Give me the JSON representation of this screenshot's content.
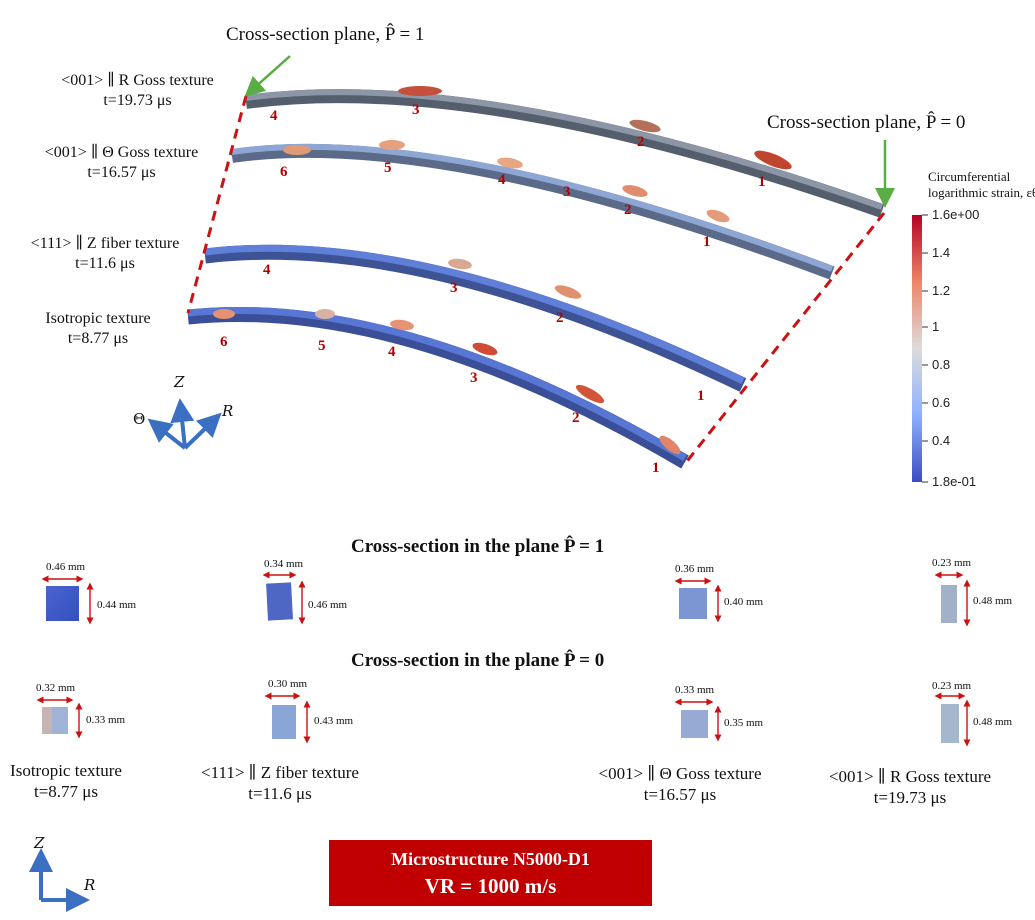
{
  "colors": {
    "strain_high": "#c8202a",
    "strain_low": "#3a54c4",
    "plane_marker": "#cc1111",
    "arrow_green": "#5aac44",
    "axis_blue": "#3a6fc2",
    "banner_red": "#c00000",
    "strip_gray": "#596270"
  },
  "top": {
    "plane1_label": "Cross-section plane, P̂ = 1",
    "plane0_label": "Cross-section plane, P̂ = 0",
    "strips": [
      {
        "name": "<001> ∥ R Goss texture",
        "time": "t=19.73 μs",
        "numbers": [
          "4",
          "3",
          "2",
          "1"
        ]
      },
      {
        "name": "<001> ∥ Θ Goss texture",
        "time": "t=16.57 μs",
        "numbers": [
          "6",
          "5",
          "4",
          "3",
          "2",
          "1"
        ]
      },
      {
        "name": "<111> ∥ Z fiber texture",
        "time": "t=11.6 μs",
        "numbers": [
          "4",
          "3",
          "2",
          "1"
        ]
      },
      {
        "name": "Isotropic texture",
        "time": "t=8.77 μs",
        "numbers": [
          "6",
          "5",
          "4",
          "3",
          "2",
          "1"
        ]
      }
    ],
    "axes": {
      "z": "Z",
      "theta": "Θ",
      "r": "R"
    }
  },
  "colorbar": {
    "title_line1": "Circumferential",
    "title_line2": "logarithmic strain, εθθ",
    "ticks": [
      "1.6e+00",
      "1.4",
      "1.2",
      "1",
      "0.8",
      "0.6",
      "0.4",
      "1.8e-01"
    ]
  },
  "sections": {
    "plane1_title": "Cross-section in the plane P̂ = 1",
    "plane0_title": "Cross-section in the plane P̂ = 0",
    "plane1": [
      {
        "width": "0.46 mm",
        "height": "0.44 mm"
      },
      {
        "width": "0.34 mm",
        "height": "0.46 mm"
      },
      {
        "width": "0.36 mm",
        "height": "0.40 mm"
      },
      {
        "width": "0.23 mm",
        "height": "0.48 mm"
      }
    ],
    "plane0": [
      {
        "width": "0.32 mm",
        "height": "0.33 mm"
      },
      {
        "width": "0.30 mm",
        "height": "0.43 mm"
      },
      {
        "width": "0.33 mm",
        "height": "0.35 mm"
      },
      {
        "width": "0.23 mm",
        "height": "0.48 mm"
      }
    ],
    "labels": [
      {
        "name": "Isotropic texture",
        "time": "t=8.77 μs"
      },
      {
        "name": "<111> ∥ Z fiber texture",
        "time": "t=11.6 μs"
      },
      {
        "name": "<001> ∥ Θ Goss texture",
        "time": "t=16.57 μs"
      },
      {
        "name": "<001> ∥ R Goss texture",
        "time": "t=19.73 μs"
      }
    ]
  },
  "bottom_axes": {
    "z": "Z",
    "r": "R"
  },
  "banner": {
    "line1": "Microstructure N5000-D1",
    "line2": "VR = 1000 m/s"
  }
}
